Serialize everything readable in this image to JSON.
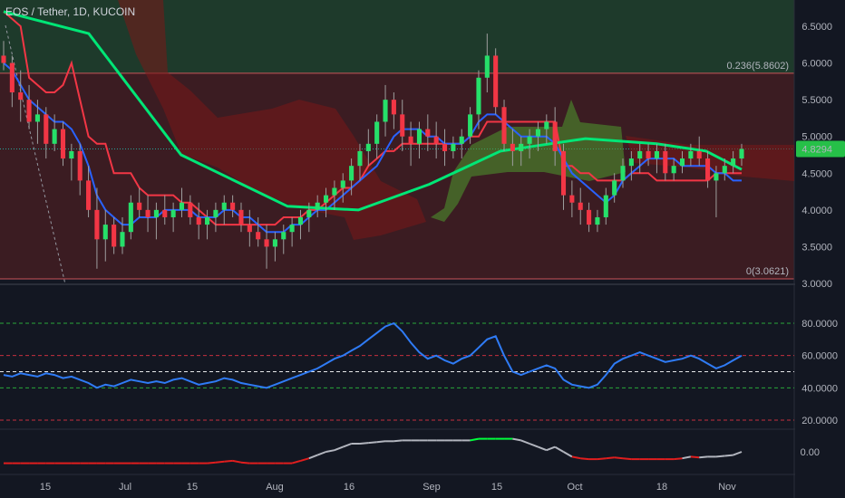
{
  "header": {
    "title": "EOS / Tether, 1D, KUCOIN"
  },
  "chart_data": {
    "type": "candlestick",
    "symbol": "EOS / Tether",
    "interval": "1D",
    "exchange": "KUCOIN",
    "last_price": "4.8294",
    "price_ylim": [
      3.0,
      6.7
    ],
    "price_ticks": [
      "6.5000",
      "6.0000",
      "5.5000",
      "5.0000",
      "4.5000",
      "4.0000",
      "3.5000",
      "3.0000"
    ],
    "rsi_ylim": [
      14,
      87
    ],
    "rsi_ticks": [
      "80.0000",
      "60.0000",
      "40.0000",
      "20.0000"
    ],
    "osc_ticks": [
      "0.00"
    ],
    "x_ticks": [
      "15",
      "Jul",
      "15",
      "Aug",
      "16",
      "Sep",
      "15",
      "Oct",
      "18",
      "Nov"
    ],
    "fib_levels": [
      {
        "label": "0.236(5.8602)",
        "value": 5.8602
      },
      {
        "label": "0(3.0621)",
        "value": 3.0621
      }
    ],
    "candles": [
      [
        6.1,
        6.3,
        5.9,
        6.0
      ],
      [
        6.0,
        6.1,
        5.4,
        5.6
      ],
      [
        5.6,
        5.9,
        5.2,
        5.5
      ],
      [
        5.5,
        5.7,
        5.1,
        5.2
      ],
      [
        5.2,
        5.5,
        4.9,
        5.3
      ],
      [
        5.3,
        5.4,
        4.7,
        4.9
      ],
      [
        4.9,
        5.3,
        4.8,
        5.1
      ],
      [
        5.1,
        5.2,
        4.6,
        4.7
      ],
      [
        4.7,
        4.9,
        4.4,
        4.8
      ],
      [
        4.8,
        4.9,
        4.2,
        4.4
      ],
      [
        4.4,
        4.6,
        3.9,
        4.0
      ],
      [
        4.0,
        4.3,
        3.2,
        3.6
      ],
      [
        3.6,
        4.0,
        3.3,
        3.8
      ],
      [
        3.8,
        3.9,
        3.4,
        3.5
      ],
      [
        3.5,
        3.9,
        3.4,
        3.7
      ],
      [
        3.7,
        4.2,
        3.6,
        4.1
      ],
      [
        4.1,
        4.3,
        3.9,
        4.0
      ],
      [
        4.0,
        4.2,
        3.7,
        3.9
      ],
      [
        3.9,
        4.1,
        3.6,
        4.0
      ],
      [
        4.0,
        4.2,
        3.8,
        3.9
      ],
      [
        3.9,
        4.1,
        3.7,
        4.0
      ],
      [
        4.0,
        4.3,
        3.9,
        4.1
      ],
      [
        4.1,
        4.2,
        3.8,
        3.9
      ],
      [
        3.9,
        4.1,
        3.6,
        3.8
      ],
      [
        3.8,
        4.0,
        3.6,
        3.9
      ],
      [
        3.9,
        4.1,
        3.7,
        4.0
      ],
      [
        4.0,
        4.2,
        3.8,
        4.1
      ],
      [
        4.1,
        4.2,
        3.9,
        4.0
      ],
      [
        4.0,
        4.1,
        3.7,
        3.8
      ],
      [
        3.8,
        4.0,
        3.5,
        3.7
      ],
      [
        3.7,
        3.9,
        3.5,
        3.6
      ],
      [
        3.6,
        3.8,
        3.2,
        3.5
      ],
      [
        3.5,
        3.7,
        3.3,
        3.6
      ],
      [
        3.6,
        3.8,
        3.4,
        3.7
      ],
      [
        3.7,
        3.9,
        3.5,
        3.8
      ],
      [
        3.8,
        4.0,
        3.6,
        3.9
      ],
      [
        3.9,
        4.1,
        3.7,
        4.0
      ],
      [
        4.0,
        4.2,
        3.9,
        4.1
      ],
      [
        4.1,
        4.3,
        3.9,
        4.2
      ],
      [
        4.2,
        4.4,
        4.0,
        4.3
      ],
      [
        4.3,
        4.5,
        4.1,
        4.4
      ],
      [
        4.4,
        4.7,
        4.2,
        4.6
      ],
      [
        4.6,
        4.9,
        4.4,
        4.8
      ],
      [
        4.8,
        5.1,
        4.6,
        4.9
      ],
      [
        4.9,
        5.3,
        4.7,
        5.2
      ],
      [
        5.2,
        5.7,
        5.0,
        5.5
      ],
      [
        5.5,
        5.6,
        5.1,
        5.3
      ],
      [
        5.3,
        5.5,
        4.8,
        5.0
      ],
      [
        5.0,
        5.2,
        4.6,
        4.9
      ],
      [
        4.9,
        5.2,
        4.7,
        5.1
      ],
      [
        5.1,
        5.3,
        4.8,
        5.0
      ],
      [
        5.0,
        5.2,
        4.7,
        4.9
      ],
      [
        4.9,
        5.1,
        4.6,
        4.8
      ],
      [
        4.8,
        5.0,
        4.7,
        4.9
      ],
      [
        4.9,
        5.1,
        4.7,
        5.0
      ],
      [
        5.0,
        5.4,
        4.9,
        5.3
      ],
      [
        5.3,
        5.9,
        5.1,
        5.8
      ],
      [
        5.8,
        6.4,
        5.6,
        6.1
      ],
      [
        6.1,
        6.2,
        5.3,
        5.4
      ],
      [
        5.4,
        5.5,
        4.8,
        4.9
      ],
      [
        4.9,
        5.1,
        4.6,
        4.8
      ],
      [
        4.8,
        5.0,
        4.6,
        4.9
      ],
      [
        4.9,
        5.1,
        4.7,
        5.0
      ],
      [
        5.0,
        5.2,
        4.8,
        5.1
      ],
      [
        5.1,
        5.3,
        4.9,
        5.2
      ],
      [
        5.2,
        5.4,
        4.6,
        4.8
      ],
      [
        4.8,
        4.9,
        4.0,
        4.2
      ],
      [
        4.2,
        4.4,
        3.9,
        4.1
      ],
      [
        4.1,
        4.3,
        3.8,
        4.0
      ],
      [
        4.0,
        4.1,
        3.7,
        3.8
      ],
      [
        3.8,
        4.0,
        3.7,
        3.9
      ],
      [
        3.9,
        4.3,
        3.8,
        4.2
      ],
      [
        4.2,
        4.5,
        4.1,
        4.4
      ],
      [
        4.4,
        4.7,
        4.3,
        4.6
      ],
      [
        4.6,
        4.8,
        4.4,
        4.7
      ],
      [
        4.7,
        4.9,
        4.5,
        4.8
      ],
      [
        4.8,
        4.9,
        4.6,
        4.7
      ],
      [
        4.7,
        4.9,
        4.5,
        4.8
      ],
      [
        4.8,
        4.9,
        4.4,
        4.5
      ],
      [
        4.5,
        4.7,
        4.4,
        4.6
      ],
      [
        4.6,
        4.8,
        4.5,
        4.7
      ],
      [
        4.7,
        4.9,
        4.6,
        4.8
      ],
      [
        4.8,
        5.0,
        4.6,
        4.7
      ],
      [
        4.7,
        4.8,
        4.3,
        4.4
      ],
      [
        4.4,
        4.6,
        3.9,
        4.5
      ],
      [
        4.5,
        4.7,
        4.4,
        4.6
      ],
      [
        4.6,
        4.8,
        4.5,
        4.7
      ],
      [
        4.7,
        4.9,
        4.6,
        4.83
      ]
    ],
    "series_red_line": [
      6.7,
      6.6,
      6.5,
      5.8,
      5.7,
      5.6,
      5.6,
      5.7,
      6.0,
      5.5,
      5.0,
      4.9,
      4.9,
      4.5,
      4.5,
      4.5,
      4.3,
      4.2,
      4.2,
      4.2,
      4.2,
      4.1,
      4.1,
      4.0,
      3.9,
      3.8,
      3.8,
      3.8,
      3.8,
      3.8,
      3.8,
      3.8,
      3.8,
      3.9,
      3.9,
      3.9,
      4.0,
      4.0,
      4.1,
      4.2,
      4.3,
      4.3,
      4.4,
      4.6,
      4.7,
      4.8,
      4.8,
      4.9,
      4.9,
      4.9,
      4.9,
      4.9,
      4.9,
      4.9,
      4.9,
      5.0,
      5.0,
      5.2,
      5.2,
      5.2,
      5.2,
      5.2,
      5.2,
      5.2,
      5.2,
      5.2,
      4.6,
      4.6,
      4.5,
      4.5,
      4.4,
      4.4,
      4.4,
      4.4,
      4.5,
      4.5,
      4.5,
      4.4,
      4.4,
      4.4,
      4.4,
      4.4,
      4.4,
      4.4,
      4.5,
      4.5,
      4.5,
      4.5
    ],
    "series_blue_line": [
      6.0,
      5.9,
      5.7,
      5.5,
      5.4,
      5.3,
      5.2,
      5.2,
      5.1,
      4.9,
      4.6,
      4.2,
      4.0,
      3.9,
      3.8,
      3.8,
      3.9,
      3.9,
      3.9,
      4.0,
      4.0,
      4.0,
      4.0,
      3.9,
      3.9,
      3.9,
      4.0,
      4.0,
      3.9,
      3.9,
      3.8,
      3.7,
      3.7,
      3.7,
      3.8,
      3.8,
      3.9,
      4.0,
      4.0,
      4.1,
      4.2,
      4.3,
      4.4,
      4.5,
      4.6,
      4.8,
      5.0,
      5.1,
      5.1,
      5.1,
      5.0,
      5.0,
      4.9,
      4.9,
      4.9,
      5.0,
      5.2,
      5.3,
      5.3,
      5.2,
      5.1,
      5.0,
      5.0,
      5.0,
      5.0,
      4.9,
      4.7,
      4.5,
      4.4,
      4.3,
      4.2,
      4.1,
      4.2,
      4.4,
      4.5,
      4.6,
      4.7,
      4.7,
      4.7,
      4.7,
      4.6,
      4.6,
      4.6,
      4.6,
      4.5,
      4.5,
      4.4,
      4.4
    ],
    "series_green_ma": [
      [
        0,
        6.7
      ],
      [
        12,
        6.4
      ],
      [
        25,
        4.75
      ],
      [
        40,
        4.05
      ],
      [
        50,
        4.0
      ],
      [
        60,
        4.35
      ],
      [
        70,
        4.8
      ],
      [
        82,
        4.97
      ],
      [
        92,
        4.9
      ],
      [
        99,
        4.8
      ],
      [
        104,
        4.55
      ]
    ],
    "rsi_values": [
      48,
      47,
      49,
      48,
      47,
      49,
      48,
      46,
      47,
      45,
      43,
      40,
      42,
      41,
      43,
      45,
      44,
      43,
      44,
      43,
      45,
      46,
      44,
      42,
      43,
      44,
      46,
      45,
      43,
      42,
      41,
      40,
      42,
      44,
      46,
      48,
      50,
      52,
      55,
      58,
      60,
      63,
      66,
      70,
      74,
      78,
      80,
      75,
      68,
      62,
      58,
      60,
      57,
      55,
      58,
      60,
      65,
      70,
      72,
      60,
      50,
      48,
      50,
      52,
      54,
      52,
      45,
      42,
      41,
      40,
      42,
      48,
      55,
      58,
      60,
      62,
      60,
      58,
      56,
      57,
      58,
      60,
      58,
      55,
      52,
      54,
      57,
      60
    ],
    "osc_values": [
      -0.7,
      -0.7,
      -0.7,
      -0.7,
      -0.7,
      -0.7,
      -0.7,
      -0.7,
      -0.7,
      -0.7,
      -0.7,
      -0.7,
      -0.7,
      -0.7,
      -0.7,
      -0.7,
      -0.7,
      -0.7,
      -0.7,
      -0.7,
      -0.7,
      -0.7,
      -0.7,
      -0.7,
      -0.7,
      -0.65,
      -0.6,
      -0.55,
      -0.65,
      -0.7,
      -0.7,
      -0.7,
      -0.7,
      -0.7,
      -0.7,
      -0.55,
      -0.4,
      -0.2,
      0.0,
      0.1,
      0.3,
      0.5,
      0.5,
      0.55,
      0.6,
      0.65,
      0.65,
      0.7,
      0.7,
      0.7,
      0.7,
      0.7,
      0.7,
      0.7,
      0.7,
      0.7,
      0.8,
      0.8,
      0.8,
      0.8,
      0.8,
      0.7,
      0.5,
      0.3,
      0.1,
      0.3,
      0.0,
      -0.3,
      -0.4,
      -0.45,
      -0.45,
      -0.4,
      -0.35,
      -0.4,
      -0.45,
      -0.45,
      -0.45,
      -0.45,
      -0.45,
      -0.45,
      -0.4,
      -0.3,
      -0.35,
      -0.3,
      -0.3,
      -0.25,
      -0.2,
      0.0
    ]
  }
}
